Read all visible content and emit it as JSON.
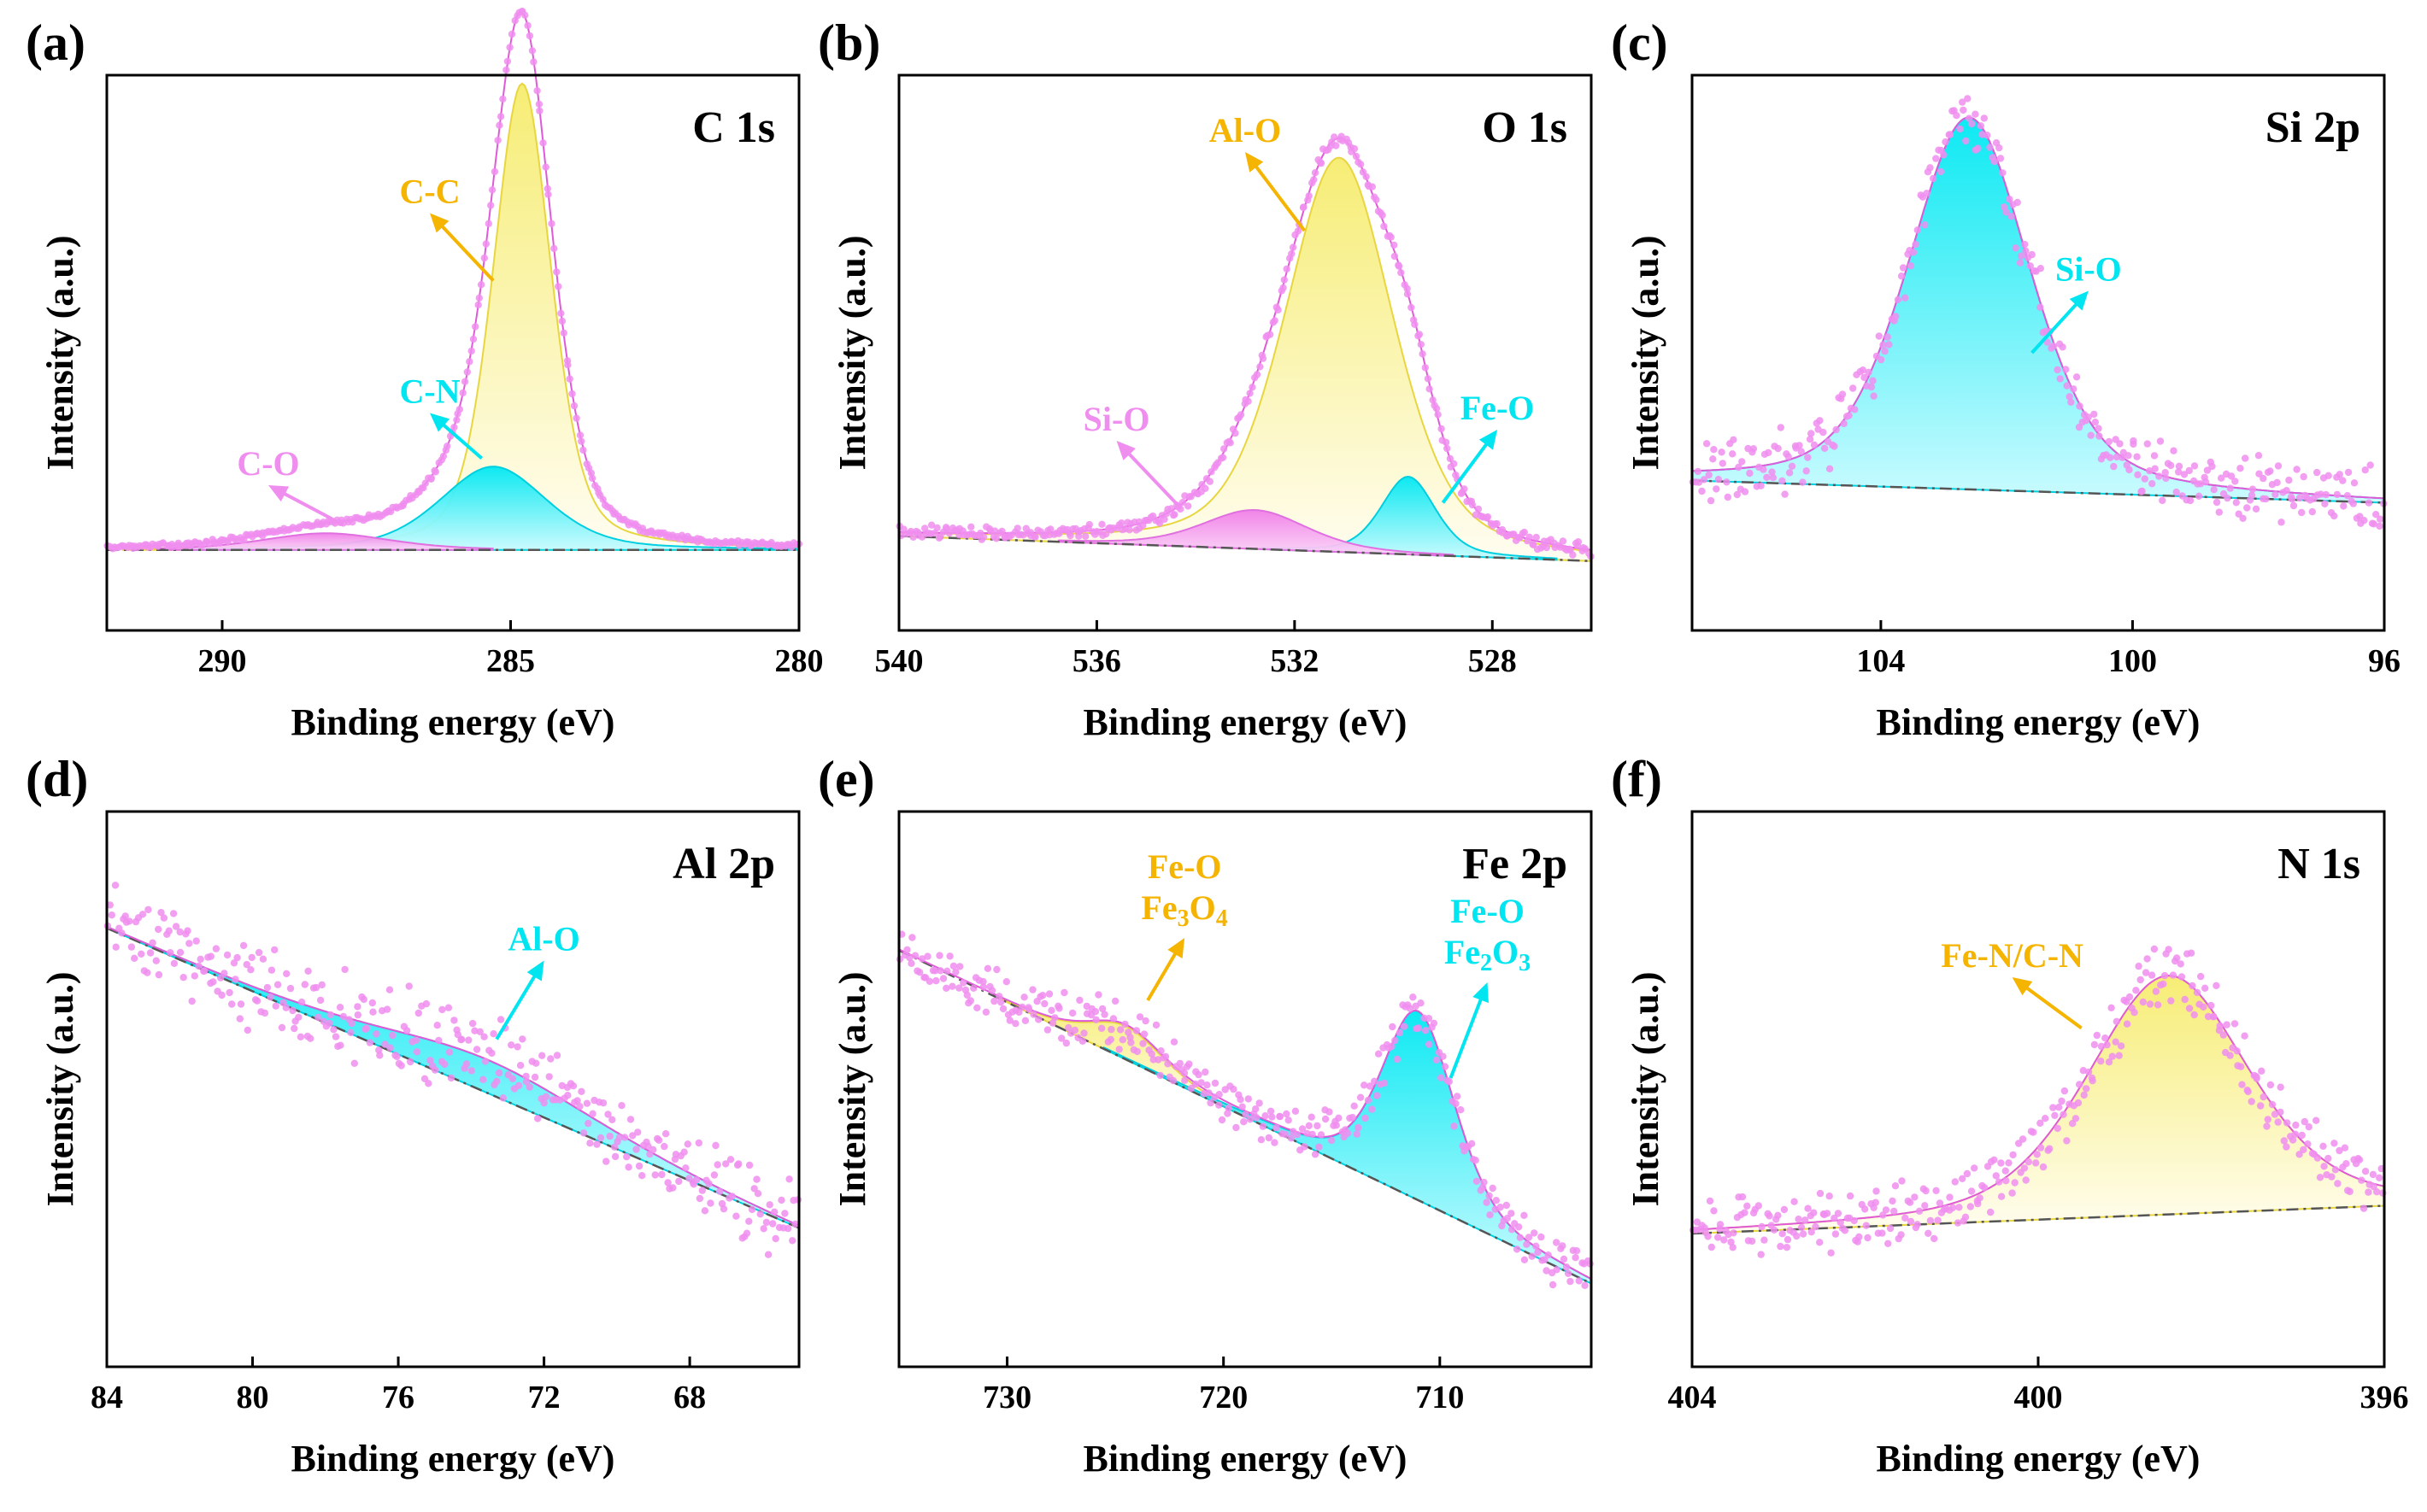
{
  "colors": {
    "pink": "#f08ef0",
    "cyan": "#00e5f0",
    "yellow": "#f7ee7a",
    "orange": "#f5b400",
    "axis": "#000000",
    "baseline": "#555555"
  },
  "chart_data": [
    {
      "panel_label": "(a)",
      "title": "C 1s",
      "type": "line",
      "xlabel": "Binding energy (eV)",
      "ylabel": "Intensity (a.u.)",
      "xlim": [
        292,
        280
      ],
      "ylim": [
        0,
        100
      ],
      "xticks": [
        {
          "v": 290,
          "t": "290"
        },
        {
          "v": 285,
          "t": "285"
        },
        {
          "v": 280,
          "t": "280"
        }
      ],
      "baseline": {
        "x1": 292,
        "y1": 14.5,
        "x2": 280,
        "y2": 14.5
      },
      "peaks": [
        {
          "name": "C-C",
          "center": 284.8,
          "height": 84,
          "fwhm": 1.2,
          "color": "yellow"
        },
        {
          "name": "C-N",
          "center": 285.3,
          "height": 15,
          "fwhm": 2.2,
          "color": "cyan"
        },
        {
          "name": "C-O",
          "center": 288.2,
          "height": 3,
          "fwhm": 2.6,
          "color": "pink"
        }
      ],
      "noise": 0.35,
      "envelope_extra": 0,
      "annotations": [
        {
          "text": "C-C",
          "color": "orange",
          "x": 286.4,
          "y": 77,
          "arrow": [
            285.3,
            63
          ]
        },
        {
          "text": "C-N",
          "color": "cyan",
          "x": 286.4,
          "y": 41,
          "arrow": [
            285.5,
            31
          ]
        },
        {
          "text": "C-O",
          "color": "pink",
          "x": 289.2,
          "y": 28,
          "arrow": [
            287.9,
            19
          ]
        }
      ]
    },
    {
      "panel_label": "(b)",
      "title": "O 1s",
      "type": "line",
      "xlabel": "Binding energy (eV)",
      "ylabel": "Intensity (a.u.)",
      "xlim": [
        540,
        526
      ],
      "ylim": [
        0,
        100
      ],
      "xticks": [
        {
          "v": 540,
          "t": "540"
        },
        {
          "v": 536,
          "t": "536"
        },
        {
          "v": 532,
          "t": "532"
        },
        {
          "v": 528,
          "t": "528"
        }
      ],
      "baseline": {
        "x1": 540,
        "y1": 17,
        "x2": 526,
        "y2": 12.5
      },
      "peaks": [
        {
          "name": "Al-O",
          "center": 531.1,
          "height": 71,
          "fwhm": 2.6,
          "color": "yellow"
        },
        {
          "name": "Fe-O",
          "center": 529.7,
          "height": 14,
          "fwhm": 1.3,
          "color": "cyan"
        },
        {
          "name": "Si-O",
          "center": 532.8,
          "height": 7,
          "fwhm": 2.5,
          "color": "pink"
        }
      ],
      "noise": 1.0,
      "envelope_extra": 0,
      "annotations": [
        {
          "text": "Al-O",
          "color": "orange",
          "x": 533.0,
          "y": 88,
          "arrow": [
            531.8,
            72
          ]
        },
        {
          "text": "Fe-O",
          "color": "cyan",
          "x": 527.9,
          "y": 38,
          "arrow": [
            529.0,
            23
          ]
        },
        {
          "text": "Si-O",
          "color": "pink",
          "x": 535.6,
          "y": 36,
          "arrow": [
            534.3,
            22
          ]
        }
      ]
    },
    {
      "panel_label": "(c)",
      "title": "Si 2p",
      "type": "line",
      "xlabel": "Binding energy (eV)",
      "ylabel": "Intensity (a.u.)",
      "xlim": [
        107,
        96
      ],
      "ylim": [
        0,
        100
      ],
      "xticks": [
        {
          "v": 104,
          "t": "104"
        },
        {
          "v": 100,
          "t": "100"
        },
        {
          "v": 96,
          "t": "96"
        }
      ],
      "baseline": {
        "x1": 107,
        "y1": 27,
        "x2": 96,
        "y2": 23
      },
      "peaks": [
        {
          "name": "Si-O",
          "center": 102.6,
          "height": 67,
          "fwhm": 2.3,
          "color": "cyan"
        }
      ],
      "noise": 4.5,
      "envelope_extra": 0,
      "annotations": [
        {
          "text": "Si-O",
          "color": "cyan",
          "x": 100.7,
          "y": 63,
          "arrow": [
            101.6,
            50
          ]
        }
      ]
    },
    {
      "panel_label": "(d)",
      "title": "Al 2p",
      "type": "line",
      "xlabel": "Binding energy (eV)",
      "ylabel": "Intensity (a.u.)",
      "xlim": [
        84,
        65
      ],
      "ylim": [
        0,
        100
      ],
      "xticks": [
        {
          "v": 84,
          "t": "84"
        },
        {
          "v": 80,
          "t": "80"
        },
        {
          "v": 76,
          "t": "76"
        },
        {
          "v": 72,
          "t": "72"
        },
        {
          "v": 68,
          "t": "68"
        }
      ],
      "baseline": {
        "x1": 84,
        "y1": 79,
        "x2": 65,
        "y2": 25
      },
      "peaks": [
        {
          "name": "Al-O",
          "center": 73.5,
          "height": 6,
          "fwhm": 7,
          "color": "cyan"
        }
      ],
      "noise": 6.0,
      "envelope_extra": 0,
      "annotations": [
        {
          "text": "Al-O",
          "color": "cyan",
          "x": 72.0,
          "y": 75,
          "arrow": [
            73.3,
            59
          ]
        }
      ]
    },
    {
      "panel_label": "(e)",
      "title": "Fe 2p",
      "type": "line",
      "xlabel": "Binding energy (eV)",
      "ylabel": "Intensity (a.u.)",
      "xlim": [
        735,
        703
      ],
      "ylim": [
        0,
        100
      ],
      "xticks": [
        {
          "v": 730,
          "t": "730"
        },
        {
          "v": 720,
          "t": "720"
        },
        {
          "v": 710,
          "t": "710"
        }
      ],
      "baseline": {
        "x1": 735,
        "y1": 75,
        "x2": 703,
        "y2": 15
      },
      "peaks": [
        {
          "name": "Fe-O Fe3O4",
          "center": 724.5,
          "height": 6,
          "fwhm": 4,
          "color": "yellow"
        },
        {
          "name": "Fe-O Fe2O3",
          "center": 711.0,
          "height": 34,
          "fwhm": 4,
          "color": "cyan"
        }
      ],
      "noise": 3.5,
      "envelope_extra": 0,
      "annotations": [
        {
          "text": "Fe-O",
          "sub_pre": "Fe",
          "sub": "3",
          "sub_mid": "O",
          "sub2": "4",
          "color": "orange",
          "x": 721.8,
          "y": 88,
          "arrow": [
            723.5,
            66
          ]
        },
        {
          "text": "Fe-O",
          "sub_pre": "Fe",
          "sub": "2",
          "sub_mid": "O",
          "sub2": "3",
          "color": "cyan",
          "x": 707.8,
          "y": 80,
          "arrow": [
            709.5,
            52
          ]
        }
      ],
      "sublabels": {
        "a": "Fe-O",
        "b": "Fe₃O₄",
        "c": "Fe-O",
        "d": "Fe₂O₃"
      }
    },
    {
      "panel_label": "(f)",
      "title": "N 1s",
      "type": "line",
      "xlabel": "Binding energy (eV)",
      "ylabel": "Intensity (a.u.)",
      "xlim": [
        404,
        396
      ],
      "ylim": [
        0,
        100
      ],
      "xticks": [
        {
          "v": 404,
          "t": "404"
        },
        {
          "v": 400,
          "t": "400"
        },
        {
          "v": 396,
          "t": "396"
        }
      ],
      "baseline": {
        "x1": 404,
        "y1": 24,
        "x2": 396,
        "y2": 29
      },
      "peaks": [
        {
          "name": "Fe-N/C-N",
          "center": 398.5,
          "height": 43,
          "fwhm": 2.2,
          "color": "yellow"
        }
      ],
      "noise": 4.5,
      "envelope_extra": 4,
      "annotations": [
        {
          "text": "Fe-N/C-N",
          "color": "orange",
          "x": 400.3,
          "y": 72,
          "arrow": [
            399.5,
            61
          ]
        }
      ]
    }
  ]
}
